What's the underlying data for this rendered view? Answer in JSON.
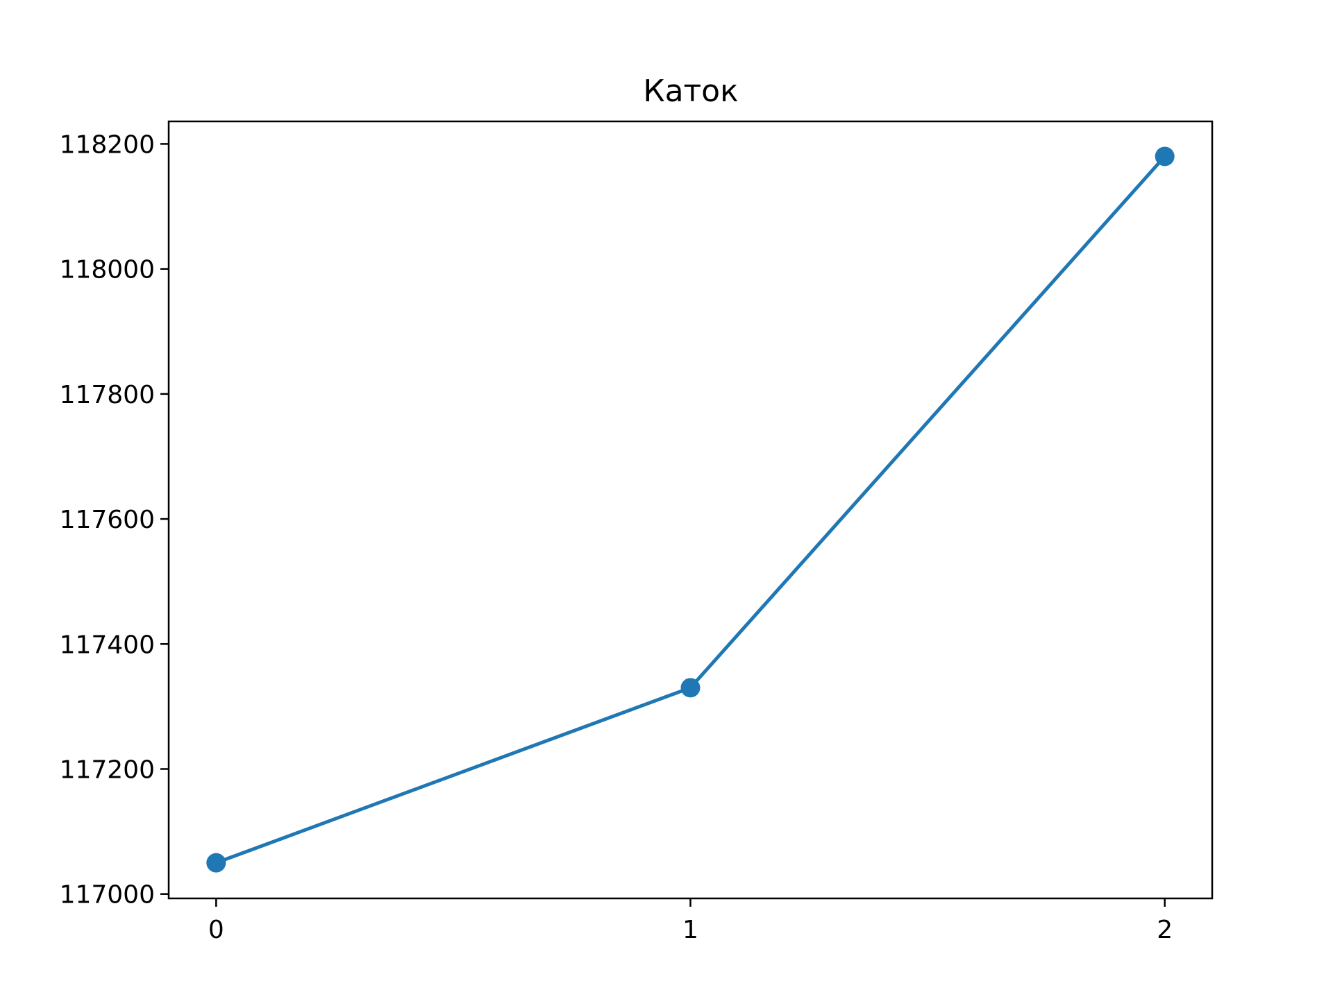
{
  "chart_data": {
    "type": "line",
    "title": "Каток",
    "xlabel": "",
    "ylabel": "",
    "x": [
      0,
      1,
      2
    ],
    "series": [
      {
        "name": "",
        "values": [
          117050,
          117330,
          118180
        ],
        "color": "#1f77b4",
        "marker": "circle"
      }
    ],
    "xticks": [
      0,
      1,
      2
    ],
    "xtick_labels": [
      "0",
      "1",
      "2"
    ],
    "yticks": [
      117000,
      117200,
      117400,
      117600,
      117800,
      118000,
      118200
    ],
    "ytick_labels": [
      "117000",
      "117200",
      "117400",
      "117600",
      "117800",
      "118000",
      "118200"
    ],
    "xlim": [
      -0.1,
      2.1
    ],
    "ylim": [
      116993,
      118236
    ],
    "grid": false,
    "legend": "none"
  }
}
